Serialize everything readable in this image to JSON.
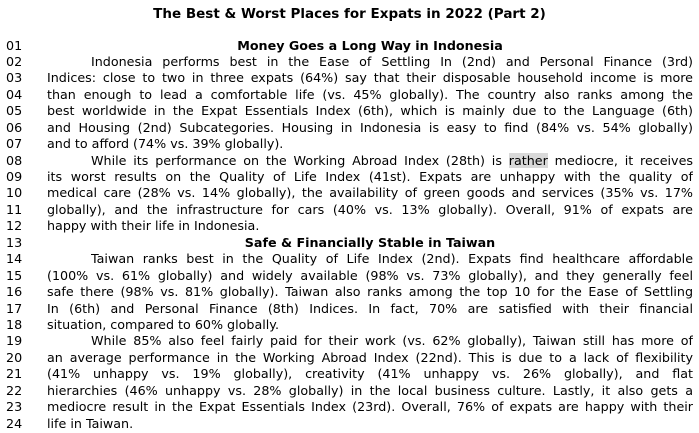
{
  "title": "The Best & Worst Places for Expats in 2022 (Part 2)",
  "lines": [
    {
      "n": "01",
      "kind": "heading",
      "text": "Money Goes a Long Way in Indonesia"
    },
    {
      "n": "02",
      "kind": "indent",
      "text": "Indonesia performs best in the Ease of Settling In (2nd) and Personal Finance (3rd)"
    },
    {
      "n": "03",
      "kind": "justify",
      "text": "Indices: close to two in three expats (64%) say that their disposable household income is more"
    },
    {
      "n": "04",
      "kind": "justify",
      "text": "than enough to lead a comfortable life (vs. 45% globally). The country also ranks among the"
    },
    {
      "n": "05",
      "kind": "justify",
      "text": "best worldwide in the Expat Essentials Index (6th), which is mainly due to the Language (6th)"
    },
    {
      "n": "06",
      "kind": "justify",
      "text": "and Housing (2nd) Subcategories. Housing in Indonesia is easy to find (84% vs. 54% globally)"
    },
    {
      "n": "07",
      "kind": "plain",
      "text": "and to afford (74% vs. 39% globally)."
    },
    {
      "n": "08",
      "kind": "indent-hl",
      "before": "While its performance on the Working Abroad Index (28th) is ",
      "highlight": "rather",
      "after": " mediocre, it receives"
    },
    {
      "n": "09",
      "kind": "justify",
      "text": "its worst results on the Quality of Life Index (41st). Expats are unhappy with the quality of"
    },
    {
      "n": "10",
      "kind": "justify",
      "text": "medical care (28% vs. 14% globally), the availability of green goods and services (35% vs. 17%"
    },
    {
      "n": "11",
      "kind": "justify",
      "text": "globally), and the infrastructure for cars (40% vs. 13% globally). Overall, 91% of expats are"
    },
    {
      "n": "12",
      "kind": "plain",
      "text": "happy with their life in Indonesia."
    },
    {
      "n": "13",
      "kind": "heading",
      "text": "Safe & Financially Stable in Taiwan"
    },
    {
      "n": "14",
      "kind": "indent",
      "text": "Taiwan ranks best in the Quality of Life Index (2nd). Expats find healthcare affordable"
    },
    {
      "n": "15",
      "kind": "justify",
      "text": "(100% vs. 61% globally) and widely available (98% vs. 73% globally), and they generally feel"
    },
    {
      "n": "16",
      "kind": "justify",
      "text": "safe there (98% vs. 81% globally). Taiwan also ranks among the top 10 for the Ease of Settling"
    },
    {
      "n": "17",
      "kind": "justify",
      "text": "In (6th) and Personal Finance (8th) Indices. In fact, 70% are satisfied with their financial"
    },
    {
      "n": "18",
      "kind": "plain",
      "text": "situation, compared to 60% globally."
    },
    {
      "n": "19",
      "kind": "indent",
      "text": "While 85% also feel fairly paid for their work (vs. 62% globally), Taiwan still has more of"
    },
    {
      "n": "20",
      "kind": "justify",
      "text": "an average performance in the Working Abroad Index (22nd). This is due to a lack of flexibility"
    },
    {
      "n": "21",
      "kind": "justify",
      "text": "(41% unhappy vs. 19% globally), creativity (41% unhappy vs. 26% globally), and flat"
    },
    {
      "n": "22",
      "kind": "justify",
      "text": "hierarchies (46% unhappy vs. 28% globally) in the local business culture. Lastly, it also gets a"
    },
    {
      "n": "23",
      "kind": "justify",
      "text": "mediocre result in the Expat Essentials Index (23rd). Overall, 76% of expats are happy with their"
    },
    {
      "n": "24",
      "kind": "plain",
      "text": "life in Taiwan."
    }
  ]
}
